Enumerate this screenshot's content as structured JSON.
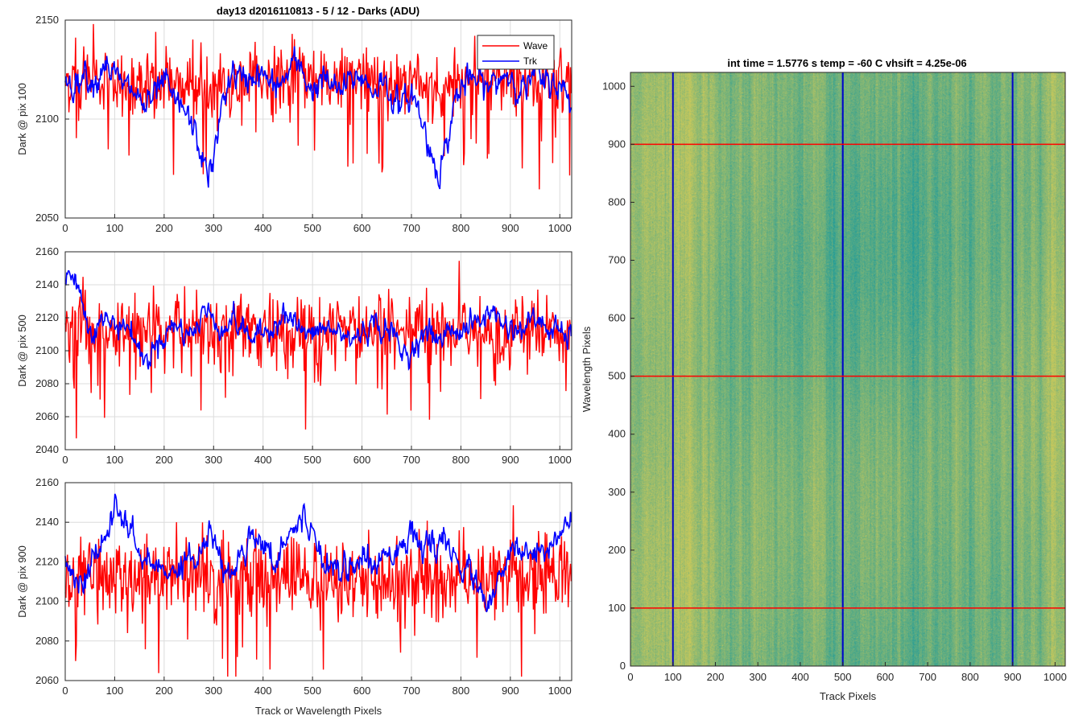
{
  "chart_data": [
    {
      "type": "line",
      "title": "day13 d2016110813 - 5 / 12 - Darks (ADU)",
      "xlabel": "",
      "ylabel": "Dark @ pix 100",
      "xlim": [
        0,
        1024
      ],
      "ylim": [
        2050,
        2150
      ],
      "xticks": [
        0,
        100,
        200,
        300,
        400,
        500,
        600,
        700,
        800,
        900,
        1000
      ],
      "yticks": [
        2050,
        2100,
        2150
      ],
      "grid": true,
      "legend": {
        "placement": "top-right",
        "entries": [
          "Wave",
          "Trk"
        ]
      },
      "series": [
        {
          "name": "Wave",
          "color": "#ff0000",
          "baseline": 2120,
          "noise": 8,
          "dips": [
            [
              2085,
              2070,
              2058,
              2060,
              2070,
              2080
            ]
          ],
          "x": [
            0,
            1024
          ]
        },
        {
          "name": "Trk",
          "color": "#0000ff",
          "anchors": [
            [
              0,
              2120
            ],
            [
              20,
              2118
            ],
            [
              40,
              2124
            ],
            [
              60,
              2118
            ],
            [
              80,
              2130
            ],
            [
              100,
              2122
            ],
            [
              120,
              2116
            ],
            [
              140,
              2114
            ],
            [
              160,
              2106
            ],
            [
              180,
              2110
            ],
            [
              200,
              2120
            ],
            [
              220,
              2108
            ],
            [
              240,
              2105
            ],
            [
              260,
              2094
            ],
            [
              275,
              2082
            ],
            [
              290,
              2072
            ],
            [
              300,
              2078
            ],
            [
              320,
              2112
            ],
            [
              340,
              2124
            ],
            [
              360,
              2118
            ],
            [
              380,
              2123
            ],
            [
              400,
              2122
            ],
            [
              420,
              2116
            ],
            [
              440,
              2118
            ],
            [
              460,
              2128
            ],
            [
              480,
              2124
            ],
            [
              500,
              2114
            ],
            [
              520,
              2121
            ],
            [
              540,
              2116
            ],
            [
              560,
              2114
            ],
            [
              580,
              2120
            ],
            [
              600,
              2122
            ],
            [
              620,
              2114
            ],
            [
              640,
              2120
            ],
            [
              660,
              2112
            ],
            [
              680,
              2105
            ],
            [
              700,
              2114
            ],
            [
              720,
              2100
            ],
            [
              740,
              2082
            ],
            [
              755,
              2074
            ],
            [
              770,
              2085
            ],
            [
              790,
              2112
            ],
            [
              810,
              2118
            ],
            [
              830,
              2120
            ],
            [
              850,
              2116
            ],
            [
              870,
              2118
            ],
            [
              890,
              2124
            ],
            [
              910,
              2119
            ],
            [
              930,
              2115
            ],
            [
              950,
              2123
            ],
            [
              970,
              2117
            ],
            [
              990,
              2120
            ],
            [
              1010,
              2112
            ],
            [
              1024,
              2110
            ]
          ]
        }
      ]
    },
    {
      "type": "line",
      "title": "",
      "xlabel": "",
      "ylabel": "Dark @ pix 500",
      "xlim": [
        0,
        1024
      ],
      "ylim": [
        2040,
        2160
      ],
      "xticks": [
        0,
        100,
        200,
        300,
        400,
        500,
        600,
        700,
        800,
        900,
        1000
      ],
      "yticks": [
        2040,
        2060,
        2080,
        2100,
        2120,
        2140,
        2160
      ],
      "grid": true,
      "series": [
        {
          "name": "Wave",
          "color": "#ff0000",
          "baseline": 2112,
          "noise": 10
        },
        {
          "name": "Trk",
          "color": "#0000ff",
          "anchors": [
            [
              0,
              2138
            ],
            [
              10,
              2150
            ],
            [
              20,
              2146
            ],
            [
              40,
              2122
            ],
            [
              60,
              2112
            ],
            [
              80,
              2120
            ],
            [
              100,
              2115
            ],
            [
              120,
              2117
            ],
            [
              140,
              2108
            ],
            [
              160,
              2092
            ],
            [
              180,
              2102
            ],
            [
              200,
              2110
            ],
            [
              220,
              2116
            ],
            [
              240,
              2112
            ],
            [
              260,
              2110
            ],
            [
              280,
              2126
            ],
            [
              300,
              2118
            ],
            [
              320,
              2114
            ],
            [
              340,
              2120
            ],
            [
              360,
              2112
            ],
            [
              380,
              2108
            ],
            [
              400,
              2110
            ],
            [
              420,
              2115
            ],
            [
              440,
              2124
            ],
            [
              460,
              2118
            ],
            [
              480,
              2112
            ],
            [
              500,
              2108
            ],
            [
              520,
              2114
            ],
            [
              540,
              2112
            ],
            [
              560,
              2110
            ],
            [
              580,
              2106
            ],
            [
              600,
              2112
            ],
            [
              620,
              2116
            ],
            [
              640,
              2114
            ],
            [
              660,
              2112
            ],
            [
              680,
              2098
            ],
            [
              700,
              2100
            ],
            [
              720,
              2110
            ],
            [
              740,
              2110
            ],
            [
              760,
              2106
            ],
            [
              780,
              2114
            ],
            [
              800,
              2112
            ],
            [
              820,
              2116
            ],
            [
              840,
              2118
            ],
            [
              860,
              2125
            ],
            [
              880,
              2118
            ],
            [
              900,
              2114
            ],
            [
              920,
              2112
            ],
            [
              940,
              2118
            ],
            [
              960,
              2118
            ],
            [
              980,
              2112
            ],
            [
              1000,
              2112
            ],
            [
              1010,
              2106
            ],
            [
              1024,
              2110
            ]
          ]
        }
      ]
    },
    {
      "type": "line",
      "title": "",
      "xlabel": "Track or Wavelength Pixels",
      "ylabel": "Dark @ pix 900",
      "xlim": [
        0,
        1024
      ],
      "ylim": [
        2060,
        2160
      ],
      "xticks": [
        0,
        100,
        200,
        300,
        400,
        500,
        600,
        700,
        800,
        900,
        1000
      ],
      "yticks": [
        2060,
        2080,
        2100,
        2120,
        2140,
        2160
      ],
      "grid": true,
      "series": [
        {
          "name": "Wave",
          "color": "#ff0000",
          "baseline": 2112,
          "noise": 10
        },
        {
          "name": "Trk",
          "color": "#0000ff",
          "anchors": [
            [
              0,
              2124
            ],
            [
              20,
              2108
            ],
            [
              40,
              2112
            ],
            [
              60,
              2122
            ],
            [
              80,
              2130
            ],
            [
              100,
              2148
            ],
            [
              120,
              2140
            ],
            [
              140,
              2130
            ],
            [
              160,
              2118
            ],
            [
              180,
              2120
            ],
            [
              200,
              2113
            ],
            [
              220,
              2116
            ],
            [
              240,
              2125
            ],
            [
              260,
              2120
            ],
            [
              280,
              2130
            ],
            [
              300,
              2134
            ],
            [
              320,
              2114
            ],
            [
              340,
              2116
            ],
            [
              360,
              2126
            ],
            [
              380,
              2136
            ],
            [
              400,
              2132
            ],
            [
              420,
              2118
            ],
            [
              440,
              2130
            ],
            [
              460,
              2138
            ],
            [
              480,
              2140
            ],
            [
              500,
              2138
            ],
            [
              520,
              2120
            ],
            [
              540,
              2122
            ],
            [
              560,
              2116
            ],
            [
              580,
              2118
            ],
            [
              600,
              2124
            ],
            [
              620,
              2114
            ],
            [
              640,
              2124
            ],
            [
              660,
              2126
            ],
            [
              680,
              2130
            ],
            [
              700,
              2136
            ],
            [
              720,
              2122
            ],
            [
              740,
              2132
            ],
            [
              760,
              2128
            ],
            [
              780,
              2124
            ],
            [
              800,
              2118
            ],
            [
              820,
              2114
            ],
            [
              840,
              2104
            ],
            [
              860,
              2098
            ],
            [
              880,
              2110
            ],
            [
              900,
              2124
            ],
            [
              920,
              2128
            ],
            [
              940,
              2122
            ],
            [
              960,
              2126
            ],
            [
              980,
              2130
            ],
            [
              1000,
              2136
            ],
            [
              1024,
              2138
            ]
          ]
        }
      ]
    },
    {
      "type": "heatmap",
      "title": "int time = 1.5776 s    temp = -60 C    vhsift = 4.25e-06",
      "xlabel": "Track Pixels",
      "ylabel": "Wavelength Pixels",
      "xlim": [
        0,
        1024
      ],
      "ylim": [
        0,
        1024
      ],
      "xticks": [
        0,
        100,
        200,
        300,
        400,
        500,
        600,
        700,
        800,
        900,
        1000
      ],
      "yticks": [
        0,
        100,
        200,
        300,
        400,
        500,
        600,
        700,
        800,
        900,
        1000
      ],
      "vertical_lines": {
        "color": "#0000cc",
        "x": [
          100,
          500,
          900
        ]
      },
      "horizontal_lines": {
        "color": "#ff0000",
        "y": [
          100,
          500,
          900
        ]
      },
      "colormap": [
        "#1e9b9a",
        "#3aae9c",
        "#8ec36e",
        "#c7c85c"
      ]
    }
  ]
}
